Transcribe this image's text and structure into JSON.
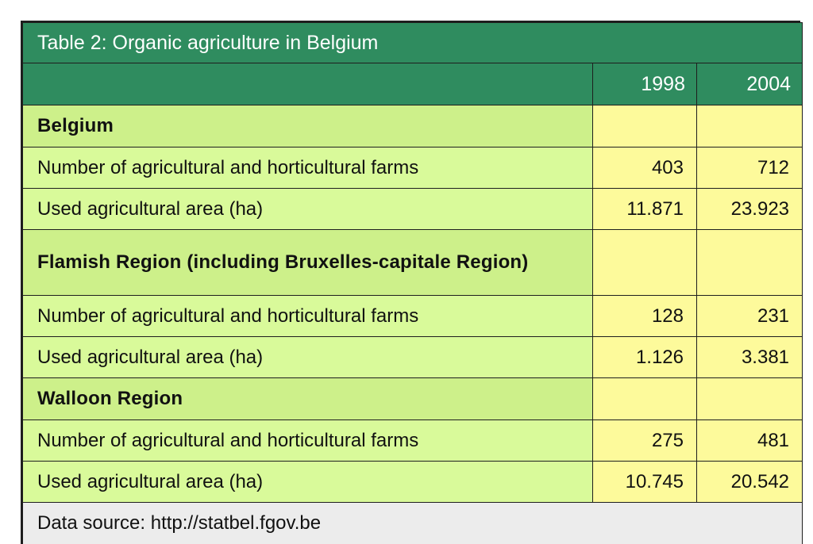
{
  "table": {
    "title": "Table 2: Organic agriculture in Belgium",
    "columns": [
      "",
      "1998",
      "2004"
    ],
    "sections": [
      {
        "heading": "Belgium",
        "rows": [
          {
            "label": "Number of agricultural and horticultural farms",
            "y1998": "403",
            "y2004": "712"
          },
          {
            "label": "Used agricultural area (ha)",
            "y1998": "11.871",
            "y2004": "23.923"
          }
        ]
      },
      {
        "heading": "Flamish Region (including Bruxelles-capitale Region)",
        "rows": [
          {
            "label": "Number of agricultural and horticultural farms",
            "y1998": "128",
            "y2004": "231"
          },
          {
            "label": "Used agricultural area (ha)",
            "y1998": "1.126",
            "y2004": "3.381"
          }
        ]
      },
      {
        "heading": "Walloon Region",
        "rows": [
          {
            "label": "Number of agricultural and horticultural farms",
            "y1998": "275",
            "y2004": "481"
          },
          {
            "label": "Used agricultural area (ha)",
            "y1998": "10.745",
            "y2004": "20.542"
          }
        ]
      }
    ],
    "source": "Data source: http://statbel.fgov.be"
  },
  "colors": {
    "header_green": "#2f8c5f",
    "section_green": "#cdf08a",
    "row_green": "#d9fa9a",
    "value_yellow": "#fdfa9b",
    "footer_grey": "#ececec"
  }
}
